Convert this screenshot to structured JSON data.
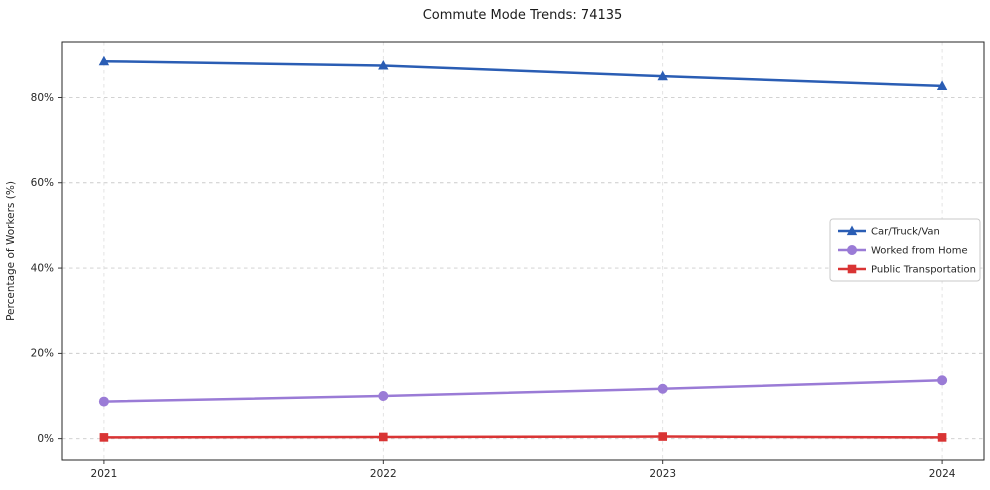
{
  "chart_data": {
    "type": "line",
    "title": "Commute Mode Trends: 74135",
    "xlabel": "",
    "ylabel": "Percentage of Workers (%)",
    "categories": [
      "2021",
      "2022",
      "2023",
      "2024"
    ],
    "series": [
      {
        "name": "Car/Truck/Van",
        "values": [
          88.5,
          87.5,
          85.0,
          82.7
        ],
        "color": "#2a5db4",
        "marker": "triangle"
      },
      {
        "name": "Worked from Home",
        "values": [
          8.7,
          10.0,
          11.7,
          13.7
        ],
        "color": "#9a7bd6",
        "marker": "circle"
      },
      {
        "name": "Public Transportation",
        "values": [
          0.3,
          0.4,
          0.5,
          0.3
        ],
        "color": "#d93434",
        "marker": "square"
      }
    ],
    "yticks": [
      0,
      20,
      40,
      60,
      80
    ],
    "ytick_labels": [
      "0%",
      "20%",
      "40%",
      "60%",
      "80%"
    ],
    "ylim": [
      -5,
      93
    ],
    "grid": true,
    "legend_position": "center right"
  }
}
